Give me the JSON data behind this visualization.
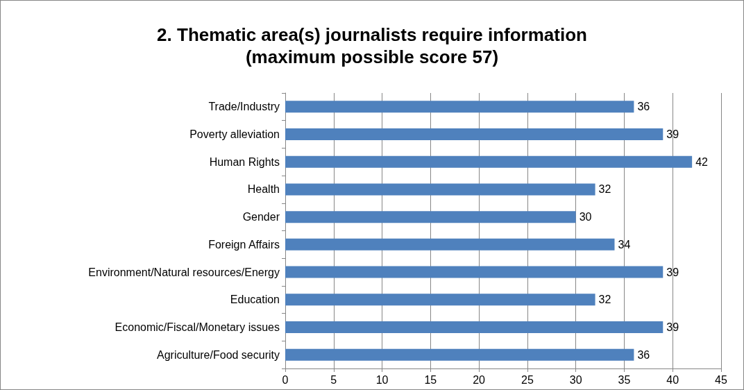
{
  "chart_data": {
    "type": "bar",
    "orientation": "horizontal",
    "title": "2. Thematic area(s) journalists require information\n(maximum possible score 57)",
    "categories": [
      "Trade/Industry",
      "Poverty alleviation",
      "Human Rights",
      "Health",
      "Gender",
      "Foreign Affairs",
      "Environment/Natural resources/Energy",
      "Education",
      "Economic/Fiscal/Monetary issues",
      "Agriculture/Food security"
    ],
    "values": [
      36,
      39,
      42,
      32,
      30,
      34,
      39,
      32,
      39,
      36
    ],
    "color": "#4f81bd",
    "xlim": [
      0,
      45
    ],
    "xticks": [
      0,
      5,
      10,
      15,
      20,
      25,
      30,
      35,
      40,
      45
    ],
    "grid": "x",
    "data_labels": true
  }
}
